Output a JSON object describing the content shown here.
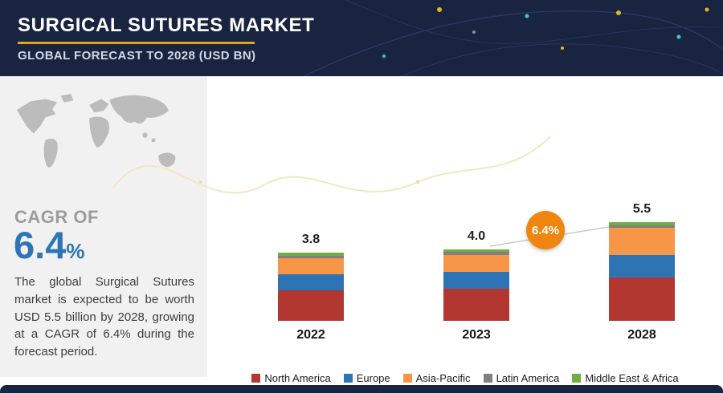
{
  "header": {
    "title": "SURGICAL SUTURES MARKET",
    "subtitle": "GLOBAL FORECAST TO 2028 (USD BN)"
  },
  "sidebar": {
    "cagr_label": "CAGR OF",
    "cagr_value": "6.4",
    "cagr_unit": "%",
    "description": "The global Surgical Sutures market is expected to be worth USD 5.5 billion by 2028, growing at a CAGR of 6.4% during the forecast period."
  },
  "chart_data": {
    "type": "bar",
    "subtype": "stacked",
    "title": "Surgical Sutures Market, Global Forecast to 2028 (USD BN)",
    "categories": [
      "2022",
      "2023",
      "2028"
    ],
    "totals": [
      3.8,
      4.0,
      5.5
    ],
    "series": [
      {
        "name": "North America",
        "color": "#b23731",
        "values": [
          1.7,
          1.8,
          2.4
        ]
      },
      {
        "name": "Europe",
        "color": "#2e74b5",
        "values": [
          0.9,
          0.95,
          1.3
        ]
      },
      {
        "name": "Asia-Pacific",
        "color": "#f79646",
        "values": [
          0.9,
          0.95,
          1.5
        ]
      },
      {
        "name": "Latin America",
        "color": "#808080",
        "values": [
          0.15,
          0.15,
          0.15
        ]
      },
      {
        "name": "Middle East & Africa",
        "color": "#6fae44",
        "values": [
          0.15,
          0.15,
          0.15
        ]
      }
    ],
    "annotation": {
      "text": "6.4%",
      "between": [
        "2023",
        "2028"
      ],
      "color": "#f0860f"
    },
    "value_labels_shown": true,
    "legend_position": "bottom",
    "ylim": [
      0,
      6
    ],
    "grid": false
  },
  "colors": {
    "header_bg": "#182440",
    "accent_yellow": "#e2a71e",
    "cagr_blue": "#2f74b5",
    "badge_orange": "#f0860f",
    "panel_gray": "#f1f1f1"
  }
}
